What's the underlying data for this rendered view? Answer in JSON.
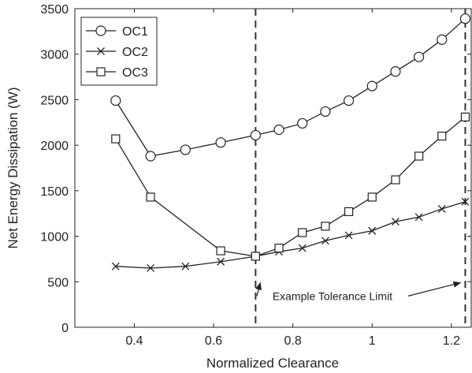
{
  "chart_data": {
    "type": "line",
    "title": "",
    "xlabel": "Normalized Clearance",
    "ylabel": "Net Energy Dissipation (W)",
    "xlim": [
      0.25,
      1.25
    ],
    "ylim": [
      0,
      3500
    ],
    "xticks": [
      0.4,
      0.6,
      0.8,
      1,
      1.2
    ],
    "xtick_labels": [
      "0.4",
      "0.6",
      "0.8",
      "1",
      "1.2"
    ],
    "yticks": [
      0,
      500,
      1000,
      1500,
      2000,
      2500,
      3000,
      3500
    ],
    "ytick_labels": [
      "0",
      "500",
      "1000",
      "1500",
      "2000",
      "2500",
      "3000",
      "3500"
    ],
    "grid": false,
    "legend_position": "top-left",
    "series": [
      {
        "name": "OC1",
        "marker": "circle",
        "x": [
          0.353,
          0.441,
          0.529,
          0.618,
          0.706,
          0.765,
          0.824,
          0.882,
          0.941,
          1.0,
          1.059,
          1.118,
          1.176,
          1.235
        ],
        "y": [
          2490,
          1880,
          1950,
          2030,
          2110,
          2170,
          2240,
          2370,
          2490,
          2650,
          2810,
          2970,
          3160,
          3390
        ]
      },
      {
        "name": "OC2",
        "marker": "x",
        "x": [
          0.353,
          0.441,
          0.529,
          0.618,
          0.706,
          0.765,
          0.824,
          0.882,
          0.941,
          1.0,
          1.059,
          1.118,
          1.176,
          1.235
        ],
        "y": [
          670,
          650,
          670,
          720,
          780,
          830,
          870,
          950,
          1010,
          1060,
          1160,
          1210,
          1300,
          1380
        ]
      },
      {
        "name": "OC3",
        "marker": "square",
        "x": [
          0.353,
          0.441,
          0.618,
          0.706,
          0.765,
          0.824,
          0.882,
          0.941,
          1.0,
          1.059,
          1.118,
          1.176,
          1.235
        ],
        "y": [
          2070,
          1430,
          840,
          780,
          870,
          1040,
          1110,
          1270,
          1430,
          1620,
          1880,
          2100,
          2310
        ]
      }
    ],
    "reference_lines": [
      {
        "x": 0.706,
        "style": "dashed"
      },
      {
        "x": 1.235,
        "style": "dashed"
      }
    ],
    "annotation": {
      "text": "Example Tolerance Limit",
      "arrow_targets": [
        [
          0.706,
          490
        ],
        [
          1.235,
          490
        ]
      ]
    },
    "annotation_text_anchor": [
      0.9,
      300
    ]
  }
}
